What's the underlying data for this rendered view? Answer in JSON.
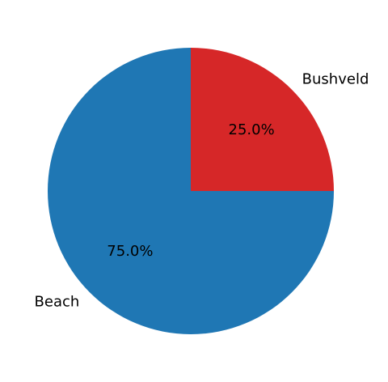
{
  "chart_data": {
    "type": "pie",
    "title": "",
    "start_angle": 90,
    "direction": "counterclockwise",
    "slices": [
      {
        "label": "Beach",
        "value": 75.0,
        "pct_label": "75.0%",
        "color": "#1f77b4"
      },
      {
        "label": "Bushveld",
        "value": 25.0,
        "pct_label": "25.0%",
        "color": "#d62728"
      }
    ],
    "legend": "none"
  }
}
